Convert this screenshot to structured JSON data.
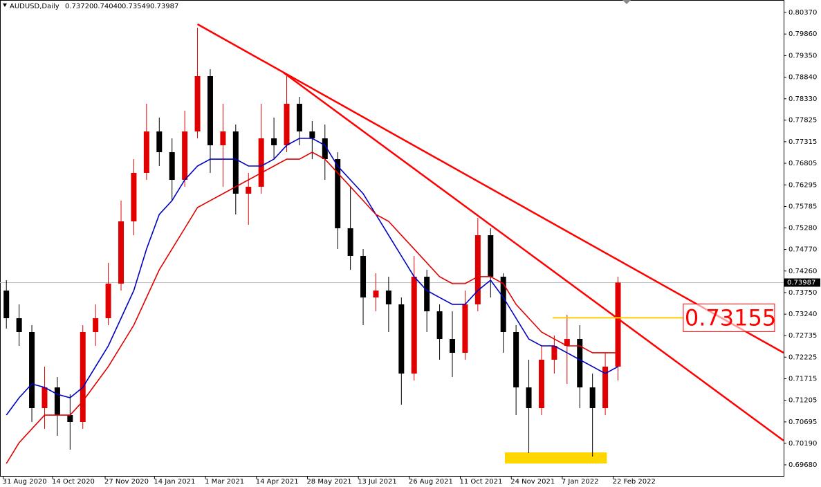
{
  "chart_data": {
    "type": "candlestick",
    "title": "AUDUSD,Daily",
    "quote": [
      {
        "value": 0.7372,
        "label": "0.73720"
      },
      {
        "value": 0.7404,
        "label": "0.74040"
      },
      {
        "value": 0.73549,
        "label": "0.73549"
      },
      {
        "value": 0.73987,
        "label": "0.73987"
      }
    ],
    "x": [
      4,
      12,
      20,
      28,
      36,
      44,
      52,
      60,
      68,
      76,
      84,
      92,
      100,
      108,
      116,
      124,
      132,
      140,
      148,
      156,
      164,
      172,
      180,
      188,
      196,
      204,
      212,
      220,
      228,
      236,
      244,
      252,
      260,
      268,
      276,
      284,
      292,
      300,
      308,
      316,
      324,
      332,
      340,
      348,
      356,
      364,
      372,
      380,
      388
    ],
    "open": [
      0.73799,
      0.73145,
      0.72818,
      0.7102,
      0.7151,
      0.70856,
      0.70693,
      0.72818,
      0.73145,
      0.73962,
      0.75433,
      0.76578,
      0.77558,
      0.77068,
      0.76414,
      0.77558,
      0.78866,
      0.77231,
      0.77558,
      0.76087,
      0.76251,
      0.77395,
      0.77231,
      0.78212,
      0.77558,
      0.77395,
      0.76904,
      0.7527,
      0.74616,
      0.73635,
      0.73799,
      0.73472,
      0.71837,
      0.74126,
      0.73308,
      0.72654,
      0.72328,
      0.73472,
      0.75106,
      0.74126,
      0.72818,
      0.7151,
      0.7102,
      0.72164,
      0.72491,
      0.72654,
      0.7151,
      0.7102,
      0.72001
    ],
    "high": [
      0.74044,
      0.73472,
      0.72981,
      0.72001,
      0.71755,
      0.71347,
      0.72981,
      0.73472,
      0.74453,
      0.75924,
      0.76904,
      0.78212,
      0.77885,
      0.77395,
      0.78049,
      0.8001,
      0.79029,
      0.78212,
      0.77722,
      0.76578,
      0.78212,
      0.77885,
      0.78866,
      0.78376,
      0.77803,
      0.77722,
      0.77068,
      0.76251,
      0.7478,
      0.74207,
      0.74126,
      0.73635,
      0.74616,
      0.74289,
      0.73472,
      0.73308,
      0.73799,
      0.75515,
      0.7527,
      0.74207,
      0.72981,
      0.72164,
      0.72491,
      0.72736,
      0.73227,
      0.72981,
      0.71837,
      0.72328,
      0.74126
    ],
    "low": [
      0.729,
      0.72491,
      0.70693,
      0.7053,
      0.70366,
      0.70039,
      0.7053,
      0.72491,
      0.72981,
      0.73799,
      0.75106,
      0.76414,
      0.76741,
      0.75924,
      0.76251,
      0.77395,
      0.76578,
      0.76251,
      0.75597,
      0.75352,
      0.76087,
      0.76904,
      0.77068,
      0.77231,
      0.76904,
      0.76414,
      0.7478,
      0.74289,
      0.72981,
      0.73308,
      0.72818,
      0.71102,
      0.71674,
      0.72818,
      0.72164,
      0.71755,
      0.72164,
      0.73308,
      0.73635,
      0.72328,
      0.70856,
      0.69957,
      0.70856,
      0.71837,
      0.71592,
      0.7102,
      0.69876,
      0.70856,
      0.71674
    ],
    "close": [
      0.73145,
      0.72818,
      0.7102,
      0.7151,
      0.70856,
      0.70693,
      0.72818,
      0.73145,
      0.73962,
      0.75433,
      0.76578,
      0.77558,
      0.77068,
      0.76414,
      0.77558,
      0.78866,
      0.77231,
      0.77558,
      0.76087,
      0.76251,
      0.77395,
      0.77231,
      0.78212,
      0.77558,
      0.77395,
      0.76904,
      0.7527,
      0.74616,
      0.73635,
      0.73799,
      0.73472,
      0.71837,
      0.74126,
      0.73308,
      0.72654,
      0.72328,
      0.73472,
      0.75106,
      0.74126,
      0.72818,
      0.7151,
      0.7102,
      0.72164,
      0.72491,
      0.72654,
      0.7151,
      0.7102,
      0.72001,
      0.73987
    ],
    "up_color": "#e00000",
    "down_color": "#000000",
    "ma_lines": [
      {
        "color": "#0000c0",
        "values": [
          0.70856,
          0.71265,
          0.71592,
          0.7151,
          0.71347,
          0.71265,
          0.7151,
          0.72001,
          0.72491,
          0.73145,
          0.73799,
          0.7478,
          0.75597,
          0.75924,
          0.76414,
          0.76741,
          0.76904,
          0.76904,
          0.76904,
          0.76741,
          0.76741,
          0.76904,
          0.77231,
          0.77395,
          0.77395,
          0.77231,
          0.76741,
          0.76414,
          0.76087,
          0.75597,
          0.75106,
          0.74616,
          0.74126,
          0.73799,
          0.73635,
          0.73472,
          0.73472,
          0.73799,
          0.74044,
          0.73635,
          0.73145,
          0.72654,
          0.72491,
          0.72491,
          0.72328,
          0.72164,
          0.72001,
          0.71837,
          0.72001
        ]
      },
      {
        "color": "#e00000",
        "values": [
          0.69712,
          0.70203,
          0.7053,
          0.70856,
          0.70856,
          0.70856,
          0.71183,
          0.71592,
          0.72001,
          0.72491,
          0.72981,
          0.73635,
          0.74289,
          0.7478,
          0.7527,
          0.7576,
          0.75924,
          0.76087,
          0.76251,
          0.76414,
          0.76578,
          0.76741,
          0.76904,
          0.76904,
          0.77068,
          0.76904,
          0.76578,
          0.76251,
          0.75924,
          0.75597,
          0.75433,
          0.75106,
          0.7478,
          0.74453,
          0.74126,
          0.73962,
          0.73962,
          0.74126,
          0.74126,
          0.73962,
          0.73472,
          0.73145,
          0.72818,
          0.72654,
          0.72491,
          0.72491,
          0.72328,
          0.72328,
          0.72328
        ]
      }
    ],
    "trendlines": [
      {
        "color": "#ff0000",
        "x": [
          124,
          492
        ],
        "y": [
          0.80092,
          0.72328
        ]
      },
      {
        "color": "#ff0000",
        "x": [
          178,
          492
        ],
        "y": [
          0.78948,
          0.70252
        ]
      }
    ],
    "level": {
      "value": 0.73155,
      "x": [
        347,
        429
      ],
      "color": "#ffcc00",
      "label_color": "#ff0000"
    },
    "zone": {
      "x": [
        317,
        381
      ],
      "y": [
        0.69712,
        0.69974
      ],
      "color": "#ffd700"
    },
    "last_price": 0.73987,
    "xlim": [
      0,
      492
    ],
    "ylim": [
      0.69418,
      0.80664
    ],
    "xticks": [
      {
        "value": 2,
        "label": "31 Aug 2020"
      },
      {
        "value": 33,
        "label": "14 Oct 2020"
      },
      {
        "value": 66,
        "label": "27 Nov 2020"
      },
      {
        "value": 97,
        "label": "14 Jan 2021"
      },
      {
        "value": 129,
        "label": "1 Mar 2021"
      },
      {
        "value": 161,
        "label": "14 Apr 2021"
      },
      {
        "value": 193,
        "label": "28 May 2021"
      },
      {
        "value": 225,
        "label": "13 Jul 2021"
      },
      {
        "value": 257,
        "label": "26 Aug 2021"
      },
      {
        "value": 289,
        "label": "11 Oct 2021"
      },
      {
        "value": 321,
        "label": "24 Nov 2021"
      },
      {
        "value": 353,
        "label": "7 Jan 2022"
      },
      {
        "value": 385,
        "label": "22 Feb 2022"
      }
    ],
    "yticks": [
      {
        "value": 0.8037,
        "label": "0.80370"
      },
      {
        "value": 0.7986,
        "label": "0.79860"
      },
      {
        "value": 0.7935,
        "label": "0.79350"
      },
      {
        "value": 0.7884,
        "label": "0.78840"
      },
      {
        "value": 0.7833,
        "label": "0.78330"
      },
      {
        "value": 0.77825,
        "label": "0.77825"
      },
      {
        "value": 0.77315,
        "label": "0.77315"
      },
      {
        "value": 0.76805,
        "label": "0.76805"
      },
      {
        "value": 0.76295,
        "label": "0.76295"
      },
      {
        "value": 0.75785,
        "label": "0.75785"
      },
      {
        "value": 0.7528,
        "label": "0.75280"
      },
      {
        "value": 0.7477,
        "label": "0.74770"
      },
      {
        "value": 0.7426,
        "label": "0.74260"
      },
      {
        "value": 0.7375,
        "label": "0.73750"
      },
      {
        "value": 0.7324,
        "label": "0.73240"
      },
      {
        "value": 0.72735,
        "label": "0.72735"
      },
      {
        "value": 0.72225,
        "label": "0.72225"
      },
      {
        "value": 0.71715,
        "label": "0.71715"
      },
      {
        "value": 0.71205,
        "label": "0.71205"
      },
      {
        "value": 0.70695,
        "label": "0.70695"
      },
      {
        "value": 0.7019,
        "label": "0.70190"
      },
      {
        "value": 0.6968,
        "label": "0.69680"
      }
    ]
  }
}
